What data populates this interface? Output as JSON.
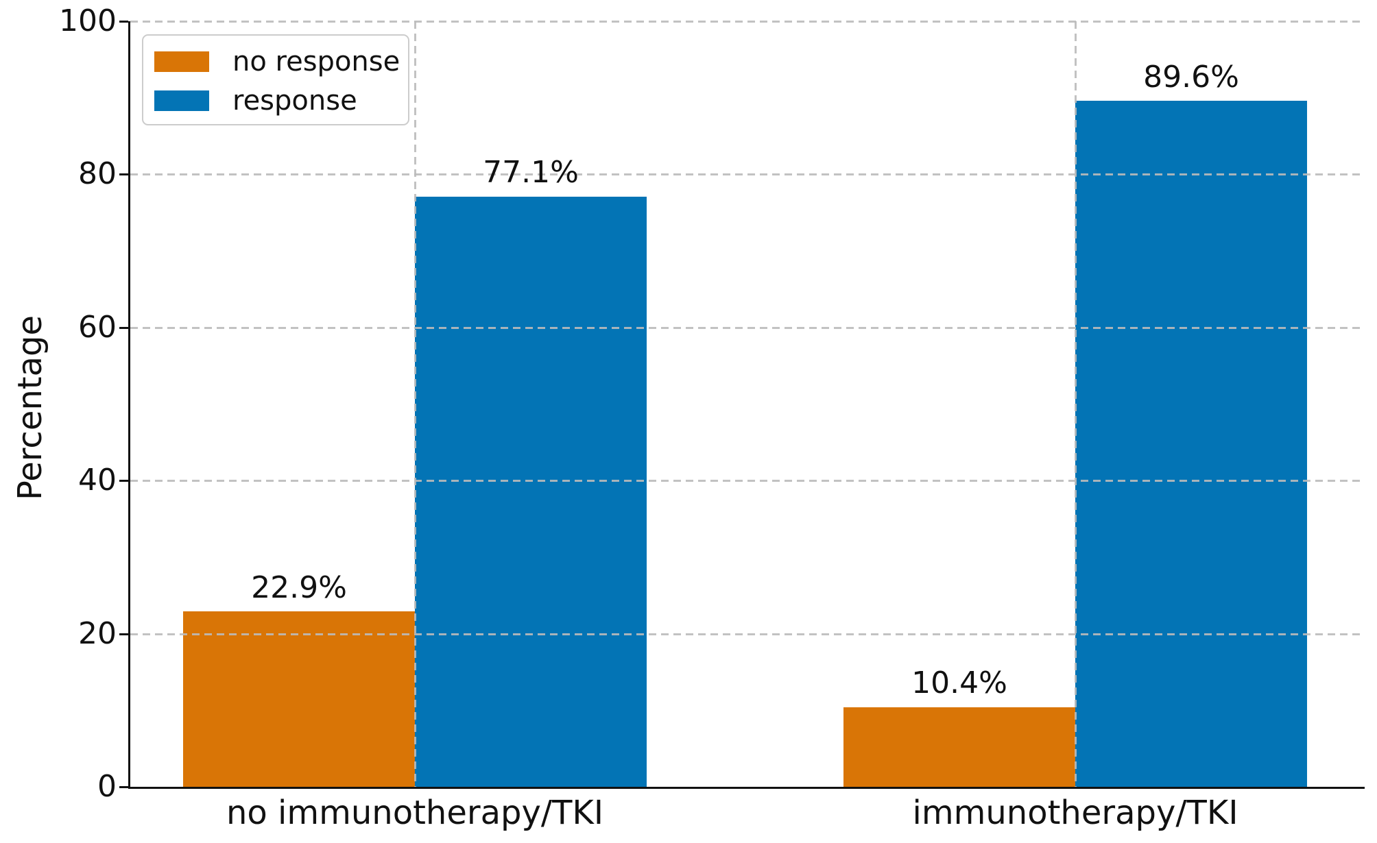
{
  "colors": {
    "axis": "#111111",
    "text": "#111111",
    "grid": "#BBBBBB",
    "legend_border": "#CCCCCC",
    "background": "#FFFFFF"
  },
  "chart_data": {
    "type": "bar",
    "title": "",
    "xlabel": "",
    "ylabel": "Percentage",
    "categories": [
      "no immunotherapy/TKI",
      "immunotherapy/TKI"
    ],
    "series": [
      {
        "name": "no response",
        "color": "#D97506",
        "values": [
          22.9,
          10.4
        ],
        "labels": [
          "22.9%",
          "10.4%"
        ]
      },
      {
        "name": "response",
        "color": "#0374B5",
        "values": [
          77.1,
          89.6
        ],
        "labels": [
          "77.1%",
          "89.6%"
        ]
      }
    ],
    "ylim": [
      0,
      100
    ],
    "yticks": [
      0,
      20,
      40,
      60,
      80,
      100
    ],
    "grid": "dashed, horizontal at y-ticks and vertical at category centers, drawn above bars",
    "legend": {
      "position": "upper left",
      "swatch_shape": "rect"
    }
  }
}
